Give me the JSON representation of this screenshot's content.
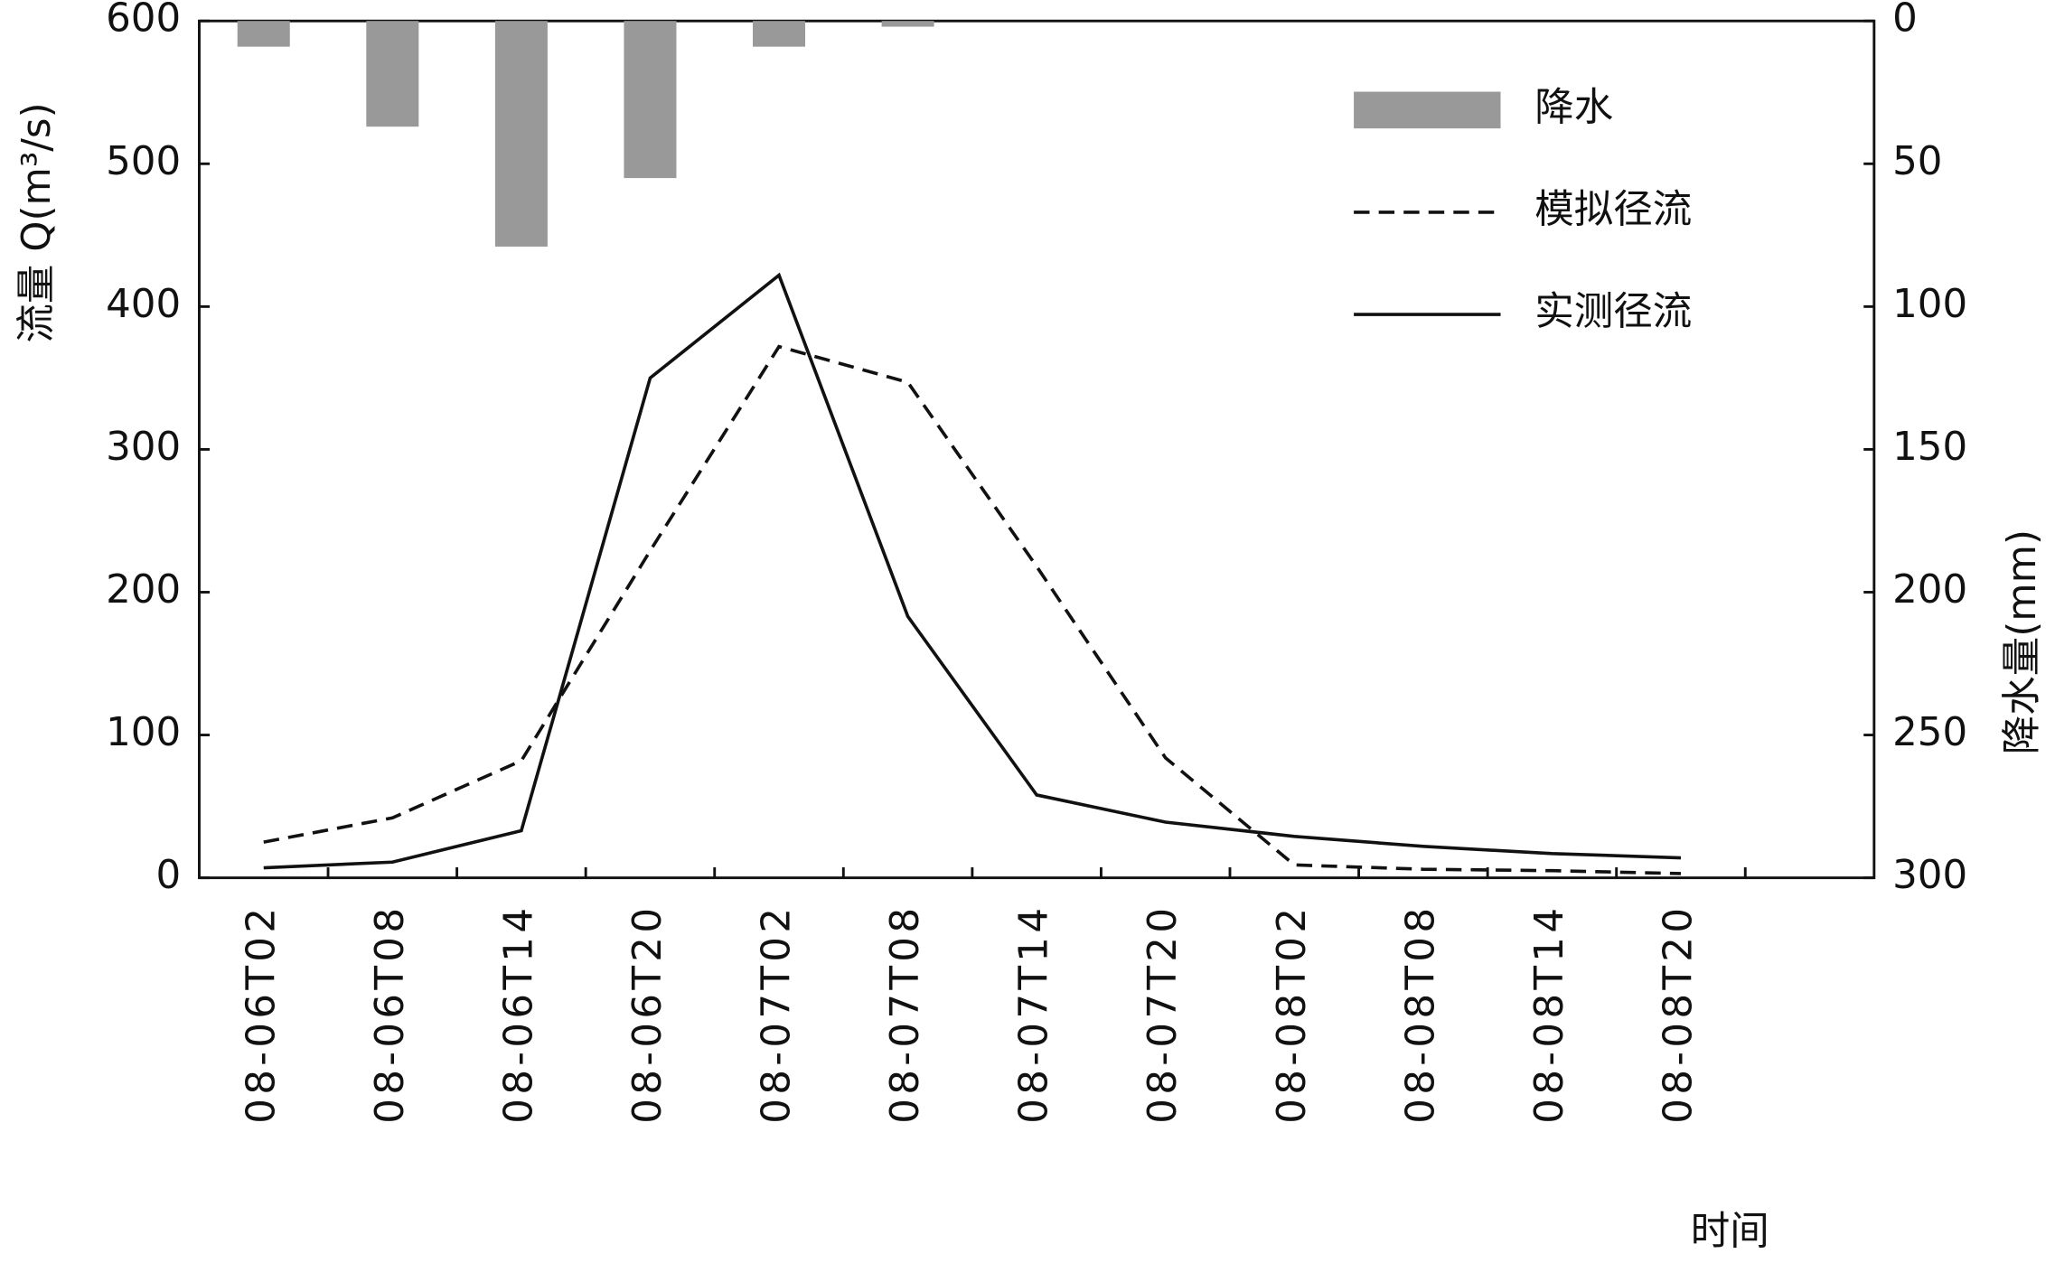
{
  "chart_data": {
    "type": "combo",
    "x_label": "时间",
    "y_label": "流量 Q(m³/s)",
    "y2_label": "降水量(mm)",
    "categories": [
      "08-06T02",
      "08-06T08",
      "08-06T14",
      "08-06T20",
      "08-07T02",
      "08-07T08",
      "08-07T14",
      "08-07T20",
      "08-08T02",
      "08-08T08",
      "08-08T14",
      "08-08T20"
    ],
    "series": [
      {
        "name": "降水",
        "type": "bar",
        "axis": "y2",
        "color": "#999999",
        "values": [
          9,
          37,
          79,
          55,
          9,
          2,
          0,
          0,
          0,
          0,
          0,
          0
        ]
      },
      {
        "name": "模拟径流",
        "type": "line",
        "line_style": "dashed",
        "color": "#111111",
        "values": [
          25,
          42,
          82,
          229,
          372,
          347,
          218,
          84,
          9,
          6,
          5,
          3
        ]
      },
      {
        "name": "实测径流",
        "type": "line",
        "line_style": "solid",
        "color": "#111111",
        "values": [
          7,
          11,
          33,
          350,
          422,
          183,
          58,
          39,
          29,
          22,
          17,
          14
        ]
      }
    ],
    "ylim": [
      0,
      600
    ],
    "yticks": [
      0,
      100,
      200,
      300,
      400,
      500,
      600
    ],
    "y2lim": [
      0,
      300
    ],
    "y2ticks": [
      0,
      50,
      100,
      150,
      200,
      250,
      300
    ],
    "y2_inverted": true,
    "legend": "upper right"
  }
}
